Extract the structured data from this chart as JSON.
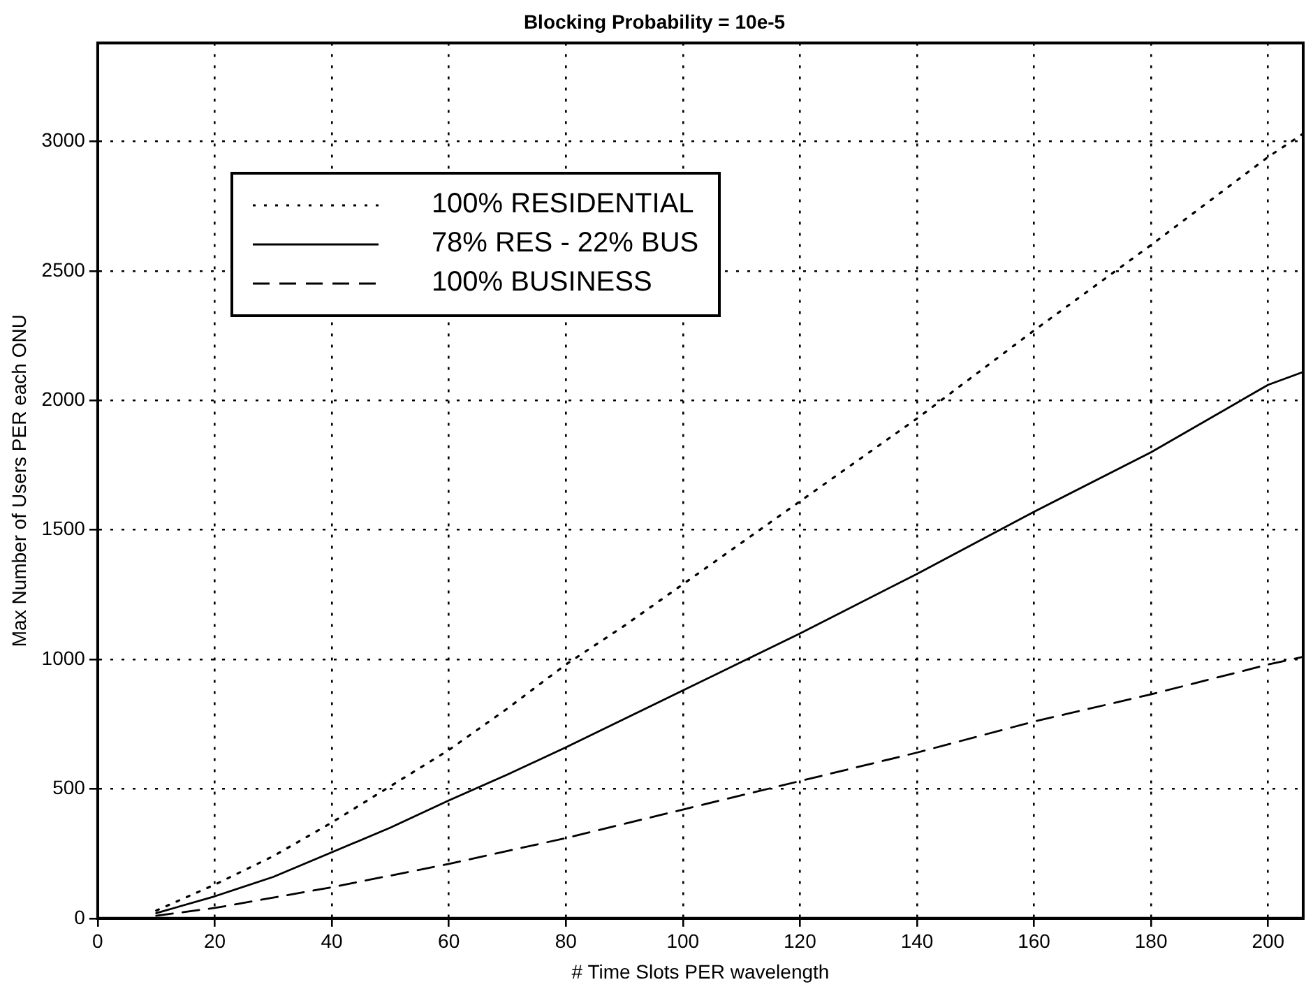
{
  "chart_data": {
    "type": "line",
    "title": "Blocking Probability = 10e-5",
    "xlabel": "# Time Slots PER wavelength",
    "ylabel": "Max Number of Users PER each ONU",
    "x": [
      10,
      20,
      30,
      40,
      50,
      60,
      70,
      80,
      90,
      100,
      110,
      120,
      140,
      160,
      180,
      200,
      206
    ],
    "series": [
      {
        "name": "100% RESIDENTIAL",
        "color": "#000000",
        "line_style": "dotted",
        "values": [
          30,
          130,
          240,
          370,
          510,
          650,
          810,
          980,
          1130,
          1290,
          1450,
          1610,
          1930,
          2270,
          2600,
          2940,
          3030
        ]
      },
      {
        "name": "78% RES - 22% BUS",
        "color": "#000000",
        "line_style": "solid",
        "values": [
          20,
          85,
          160,
          255,
          350,
          455,
          555,
          660,
          770,
          880,
          990,
          1100,
          1330,
          1570,
          1800,
          2060,
          2110
        ]
      },
      {
        "name": "100% BUSINESS",
        "color": "#000000",
        "line_style": "dashed",
        "values": [
          10,
          40,
          80,
          120,
          165,
          210,
          260,
          310,
          365,
          420,
          475,
          530,
          640,
          760,
          865,
          980,
          1010
        ]
      }
    ],
    "xlim": [
      0,
      206
    ],
    "xticks": [
      0,
      20,
      40,
      60,
      80,
      100,
      120,
      140,
      160,
      180,
      200
    ],
    "ylim": [
      0,
      3380
    ],
    "yticks": [
      0,
      500,
      1000,
      1500,
      2000,
      2500,
      3000
    ],
    "grid": true,
    "legend": "top left",
    "marker": "none"
  }
}
